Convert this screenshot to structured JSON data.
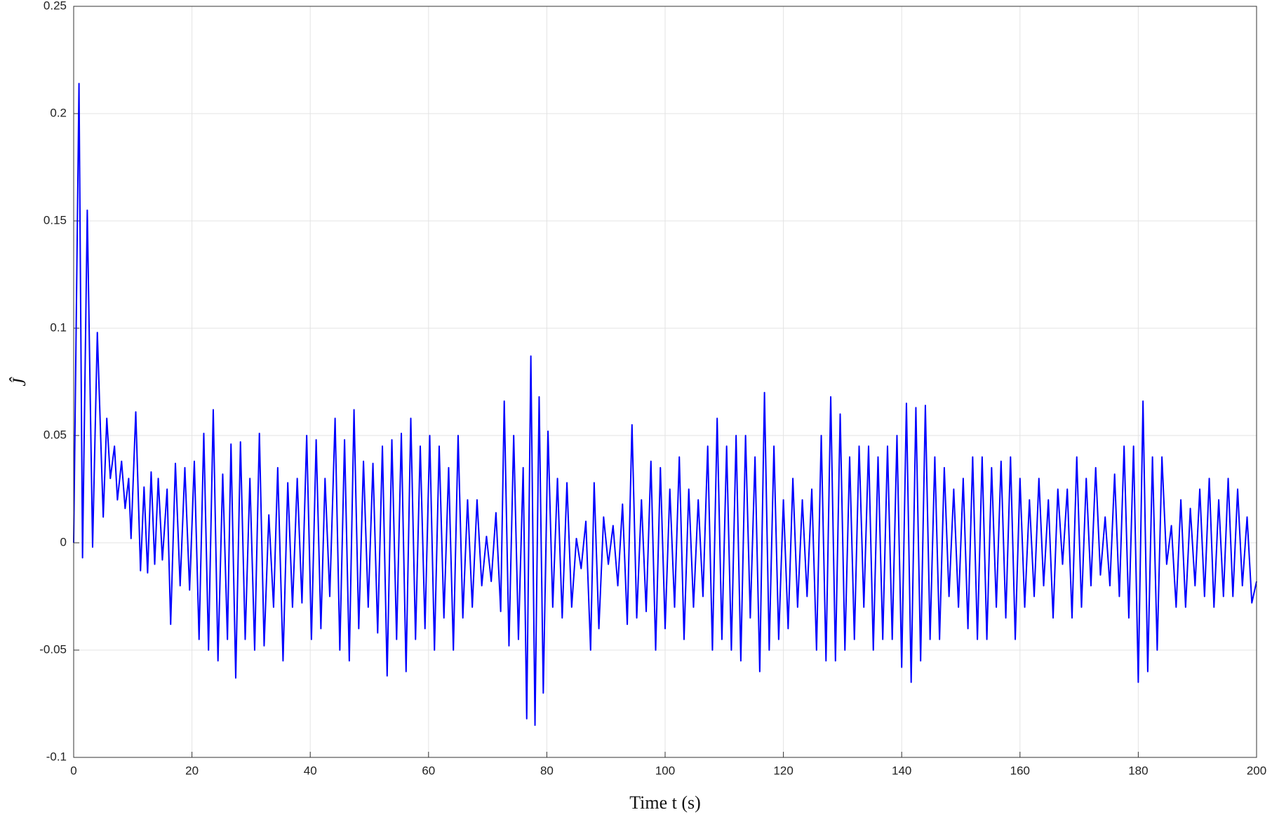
{
  "chart_data": {
    "type": "line",
    "xlabel": "Time t (s)",
    "ylabel": "Ĵ",
    "xlim": [
      0,
      200
    ],
    "xticks": [
      0,
      20,
      40,
      60,
      80,
      100,
      120,
      140,
      160,
      180,
      200
    ],
    "ylim": [
      -0.1,
      0.25
    ],
    "yticks": [
      -0.1,
      -0.05,
      0,
      0.05,
      0.1,
      0.15,
      0.2,
      0.25
    ],
    "grid": true,
    "series": [
      {
        "color": "#0000ff",
        "x": [
          0,
          0.9,
          1.5,
          2.3,
          3.2,
          4.0,
          5.0,
          5.6,
          6.2,
          6.9,
          7.4,
          8.1,
          8.7,
          9.3,
          9.7,
          10.5,
          11.3,
          11.9,
          12.5,
          13.1,
          13.7,
          14.3,
          15.0,
          15.8,
          16.4,
          17.2,
          18.0,
          18.8,
          19.6,
          20.4,
          21.2,
          22.0,
          22.8,
          23.6,
          24.4,
          25.2,
          26.0,
          26.6,
          27.4,
          28.2,
          29.0,
          29.8,
          30.6,
          31.4,
          32.2,
          33.0,
          33.8,
          34.5,
          35.4,
          36.2,
          37.0,
          37.8,
          38.6,
          39.4,
          40.2,
          41.0,
          41.8,
          42.5,
          43.3,
          44.2,
          45.0,
          45.8,
          46.6,
          47.4,
          48.2,
          49.0,
          49.8,
          50.6,
          51.4,
          52.2,
          53.0,
          53.8,
          54.6,
          55.4,
          56.2,
          57.0,
          57.8,
          58.6,
          59.4,
          60.2,
          61.0,
          61.8,
          62.6,
          63.4,
          64.2,
          65.0,
          65.8,
          66.6,
          67.4,
          68.2,
          69.0,
          69.8,
          70.6,
          71.4,
          72.2,
          72.8,
          73.6,
          74.4,
          75.2,
          76.0,
          76.6,
          77.3,
          78.0,
          78.7,
          79.4,
          80.2,
          81.0,
          81.8,
          82.6,
          83.4,
          84.2,
          85.0,
          85.8,
          86.6,
          87.4,
          88.0,
          88.8,
          89.6,
          90.4,
          91.2,
          92.0,
          92.8,
          93.6,
          94.4,
          95.2,
          96.0,
          96.8,
          97.6,
          98.4,
          99.2,
          100.0,
          100.8,
          101.6,
          102.4,
          103.2,
          104.0,
          104.8,
          105.6,
          106.4,
          107.2,
          108.0,
          108.8,
          109.6,
          110.4,
          111.2,
          112.0,
          112.8,
          113.6,
          114.4,
          115.2,
          116.0,
          116.8,
          117.6,
          118.4,
          119.2,
          120.0,
          120.8,
          121.6,
          122.4,
          123.2,
          124.0,
          124.8,
          125.6,
          126.4,
          127.2,
          128.0,
          128.8,
          129.6,
          130.4,
          131.2,
          132.0,
          132.8,
          133.6,
          134.4,
          135.2,
          136.0,
          136.8,
          137.6,
          138.4,
          139.2,
          140.0,
          140.8,
          141.6,
          142.4,
          143.2,
          144.0,
          144.8,
          145.6,
          146.4,
          147.2,
          148.0,
          148.8,
          149.6,
          150.4,
          151.2,
          152.0,
          152.8,
          153.6,
          154.4,
          155.2,
          156.0,
          156.8,
          157.6,
          158.4,
          159.2,
          160.0,
          160.8,
          161.6,
          162.4,
          163.2,
          164.0,
          164.8,
          165.6,
          166.4,
          167.2,
          168.0,
          168.8,
          169.6,
          170.4,
          171.2,
          172.0,
          172.8,
          173.6,
          174.4,
          175.2,
          176.0,
          176.8,
          177.6,
          178.4,
          179.2,
          180.0,
          180.8,
          181.6,
          182.4,
          183.2,
          184.0,
          184.8,
          185.6,
          186.4,
          187.2,
          188.0,
          188.8,
          189.6,
          190.4,
          191.2,
          192.0,
          192.8,
          193.6,
          194.4,
          195.2,
          196.0,
          196.8,
          197.6,
          198.4,
          199.2,
          200
        ],
        "values": [
          0,
          0.214,
          -0.007,
          0.155,
          -0.002,
          0.098,
          0.012,
          0.058,
          0.03,
          0.045,
          0.02,
          0.038,
          0.016,
          0.03,
          0.002,
          0.061,
          -0.013,
          0.026,
          -0.014,
          0.033,
          -0.01,
          0.03,
          -0.008,
          0.025,
          -0.038,
          0.037,
          -0.02,
          0.035,
          -0.022,
          0.038,
          -0.045,
          0.051,
          -0.05,
          0.062,
          -0.055,
          0.032,
          -0.045,
          0.046,
          -0.063,
          0.047,
          -0.045,
          0.03,
          -0.05,
          0.051,
          -0.048,
          0.013,
          -0.03,
          0.035,
          -0.055,
          0.028,
          -0.03,
          0.03,
          -0.028,
          0.05,
          -0.045,
          0.048,
          -0.04,
          0.03,
          -0.025,
          0.058,
          -0.05,
          0.048,
          -0.055,
          0.062,
          -0.04,
          0.038,
          -0.03,
          0.037,
          -0.042,
          0.045,
          -0.062,
          0.048,
          -0.045,
          0.051,
          -0.06,
          0.058,
          -0.045,
          0.045,
          -0.04,
          0.05,
          -0.05,
          0.045,
          -0.035,
          0.035,
          -0.05,
          0.05,
          -0.035,
          0.02,
          -0.03,
          0.02,
          -0.02,
          0.003,
          -0.018,
          0.014,
          -0.032,
          0.066,
          -0.048,
          0.05,
          -0.045,
          0.035,
          -0.082,
          0.087,
          -0.085,
          0.068,
          -0.07,
          0.052,
          -0.03,
          0.03,
          -0.035,
          0.028,
          -0.03,
          0.002,
          -0.012,
          0.01,
          -0.05,
          0.028,
          -0.04,
          0.012,
          -0.01,
          0.008,
          -0.02,
          0.018,
          -0.038,
          0.055,
          -0.035,
          0.02,
          -0.032,
          0.038,
          -0.05,
          0.035,
          -0.04,
          0.025,
          -0.03,
          0.04,
          -0.045,
          0.025,
          -0.03,
          0.02,
          -0.025,
          0.045,
          -0.05,
          0.058,
          -0.045,
          0.045,
          -0.05,
          0.05,
          -0.055,
          0.05,
          -0.035,
          0.04,
          -0.06,
          0.07,
          -0.05,
          0.045,
          -0.045,
          0.02,
          -0.04,
          0.03,
          -0.03,
          0.02,
          -0.025,
          0.025,
          -0.05,
          0.05,
          -0.055,
          0.068,
          -0.055,
          0.06,
          -0.05,
          0.04,
          -0.045,
          0.045,
          -0.03,
          0.045,
          -0.05,
          0.04,
          -0.045,
          0.045,
          -0.045,
          0.05,
          -0.058,
          0.065,
          -0.065,
          0.063,
          -0.055,
          0.064,
          -0.045,
          0.04,
          -0.045,
          0.035,
          -0.025,
          0.025,
          -0.03,
          0.03,
          -0.04,
          0.04,
          -0.045,
          0.04,
          -0.045,
          0.035,
          -0.03,
          0.038,
          -0.035,
          0.04,
          -0.045,
          0.03,
          -0.03,
          0.02,
          -0.025,
          0.03,
          -0.02,
          0.02,
          -0.035,
          0.025,
          -0.01,
          0.025,
          -0.035,
          0.04,
          -0.03,
          0.03,
          -0.02,
          0.035,
          -0.015,
          0.012,
          -0.02,
          0.032,
          -0.025,
          0.045,
          -0.035,
          0.045,
          -0.065,
          0.066,
          -0.06,
          0.04,
          -0.05,
          0.04,
          -0.01,
          0.008,
          -0.03,
          0.02,
          -0.03,
          0.016,
          -0.02,
          0.025,
          -0.025,
          0.03,
          -0.03,
          0.02,
          -0.025,
          0.03,
          -0.025,
          0.025,
          -0.02,
          0.012,
          -0.028,
          -0.018
        ]
      }
    ]
  }
}
